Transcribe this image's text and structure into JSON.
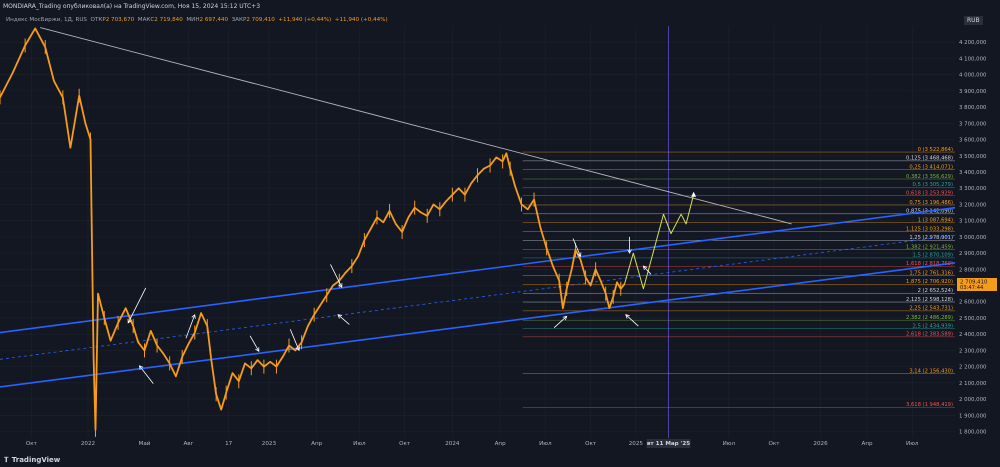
{
  "header": {
    "text": "MONDIARA_Trading опубликовал(а) на TradingView.com, Ноя 15, 2024 15:12 UTC+3"
  },
  "legend": {
    "symbol": "Индекс МосБиржи, 1Д, RUS",
    "open_label": "ОТКР",
    "open": "2 703,670",
    "high_label": "МАКС",
    "high": "2 719,840",
    "low_label": "МИН",
    "low": "2 697,440",
    "close_label": "ЗАКР",
    "close": "2 709,410",
    "change": "+11,940 (+0,44%)",
    "change2": "+11,940 (+0,44%)"
  },
  "currency": "RUB",
  "footer": {
    "logo": "TradingView",
    "logo_icon": "tv-logo-icon"
  },
  "price_tag": {
    "value": "2 709,410",
    "time": "03:47:44",
    "price": 2709.41
  },
  "date_marker": "вт 11 Мар '25",
  "colors": {
    "bg": "#131722",
    "grid": "#1e222d",
    "candle": "#f59c1a",
    "channel": "#2962ff",
    "trend": "#b2b5be",
    "arrow": "#ffffff",
    "projection": "#d4e157",
    "vline": "#7b61ff"
  },
  "chart_data": {
    "type": "line",
    "title": "Индекс МосБиржи, 1Д",
    "ylabel": "RUB",
    "ylim": [
      1760,
      4300
    ],
    "x_ticks": [
      "Окт",
      "2022",
      "Май",
      "Авг",
      "17",
      "2023",
      "Апр",
      "Июл",
      "Окт",
      "2024",
      "Апр",
      "Июл",
      "Окт",
      "2025",
      "вт 11 Мар '25",
      "Июл",
      "Окт",
      "2026",
      "Апр",
      "Июл"
    ],
    "x_tick_pos": [
      0.5,
      5,
      9.5,
      13,
      16.2,
      19.4,
      23.2,
      26.6,
      30.2,
      34,
      37.8,
      41.4,
      45,
      48.6,
      51.2,
      56,
      59.6,
      63.3,
      67,
      70.6
    ],
    "x_range": [
      -2,
      74
    ],
    "y_ticks": [
      1800,
      1900,
      2000,
      2100,
      2200,
      2300,
      2400,
      2500,
      2600,
      2700,
      2800,
      2900,
      3000,
      3100,
      3200,
      3300,
      3400,
      3500,
      3600,
      3700,
      3800,
      3900,
      4000,
      4100,
      4200
    ],
    "price_path": [
      [
        -2,
        3860
      ],
      [
        -1,
        4010
      ],
      [
        0,
        4180
      ],
      [
        0.8,
        4285
      ],
      [
        1.6,
        4170
      ],
      [
        2.3,
        3960
      ],
      [
        3,
        3860
      ],
      [
        3.6,
        3550
      ],
      [
        4.3,
        3870
      ],
      [
        4.8,
        3700
      ],
      [
        5.2,
        3600
      ],
      [
        5.45,
        2250
      ],
      [
        5.6,
        1810
      ],
      [
        5.8,
        2650
      ],
      [
        6.3,
        2500
      ],
      [
        6.8,
        2360
      ],
      [
        7.4,
        2470
      ],
      [
        8,
        2560
      ],
      [
        8.6,
        2450
      ],
      [
        9,
        2350
      ],
      [
        9.5,
        2300
      ],
      [
        10,
        2420
      ],
      [
        10.5,
        2330
      ],
      [
        11,
        2280
      ],
      [
        11.5,
        2220
      ],
      [
        12,
        2140
      ],
      [
        12.5,
        2260
      ],
      [
        13,
        2340
      ],
      [
        13.5,
        2410
      ],
      [
        14,
        2530
      ],
      [
        14.5,
        2450
      ],
      [
        14.8,
        2250
      ],
      [
        15.2,
        2030
      ],
      [
        15.6,
        1935
      ],
      [
        16,
        2040
      ],
      [
        16.5,
        2160
      ],
      [
        17,
        2110
      ],
      [
        17.5,
        2220
      ],
      [
        18,
        2190
      ],
      [
        18.5,
        2240
      ],
      [
        19,
        2200
      ],
      [
        19.5,
        2230
      ],
      [
        20,
        2200
      ],
      [
        20.5,
        2260
      ],
      [
        21,
        2330
      ],
      [
        21.5,
        2300
      ],
      [
        22,
        2350
      ],
      [
        22.5,
        2450
      ],
      [
        23,
        2520
      ],
      [
        23.5,
        2580
      ],
      [
        24,
        2640
      ],
      [
        24.5,
        2700
      ],
      [
        25,
        2730
      ],
      [
        25.5,
        2780
      ],
      [
        26,
        2820
      ],
      [
        26.5,
        2880
      ],
      [
        27,
        2980
      ],
      [
        27.5,
        3050
      ],
      [
        28,
        3120
      ],
      [
        28.5,
        3090
      ],
      [
        29,
        3160
      ],
      [
        29.5,
        3080
      ],
      [
        30,
        3030
      ],
      [
        30.5,
        3120
      ],
      [
        31,
        3180
      ],
      [
        31.5,
        3150
      ],
      [
        32,
        3130
      ],
      [
        32.5,
        3200
      ],
      [
        33,
        3170
      ],
      [
        33.5,
        3220
      ],
      [
        34,
        3260
      ],
      [
        34.5,
        3300
      ],
      [
        35,
        3260
      ],
      [
        35.5,
        3330
      ],
      [
        36,
        3380
      ],
      [
        36.5,
        3420
      ],
      [
        37,
        3440
      ],
      [
        37.5,
        3490
      ],
      [
        38,
        3465
      ],
      [
        38.3,
        3515
      ],
      [
        38.6,
        3420
      ],
      [
        39,
        3310
      ],
      [
        39.5,
        3200
      ],
      [
        40,
        3170
      ],
      [
        40.5,
        3230
      ],
      [
        41,
        3060
      ],
      [
        41.5,
        2930
      ],
      [
        42,
        2820
      ],
      [
        42.5,
        2730
      ],
      [
        42.8,
        2560
      ],
      [
        43.1,
        2680
      ],
      [
        43.5,
        2800
      ],
      [
        43.8,
        2920
      ],
      [
        44.2,
        2860
      ],
      [
        44.6,
        2750
      ],
      [
        45,
        2700
      ],
      [
        45.4,
        2800
      ],
      [
        45.8,
        2730
      ],
      [
        46.2,
        2650
      ],
      [
        46.5,
        2560
      ],
      [
        46.8,
        2630
      ],
      [
        47.1,
        2720
      ],
      [
        47.4,
        2680
      ],
      [
        47.7,
        2709
      ]
    ],
    "projection_path": [
      [
        47.7,
        2709
      ],
      [
        48.4,
        2900
      ],
      [
        49.2,
        2680
      ],
      [
        50.8,
        3140
      ],
      [
        51.4,
        3020
      ],
      [
        52.2,
        3140
      ],
      [
        52.6,
        3080
      ],
      [
        53.2,
        3260
      ]
    ],
    "trendline": {
      "from": [
        1.2,
        4290
      ],
      "to": [
        61,
        3080
      ]
    },
    "channel_upper": {
      "from": [
        -2,
        2410
      ],
      "to": [
        74,
        3180
      ]
    },
    "channel_lower": {
      "from": [
        -2,
        2075
      ],
      "to": [
        74,
        2840
      ]
    },
    "channel_mid": {
      "from": [
        -2,
        2245
      ],
      "to": [
        74,
        3010
      ]
    },
    "annotation_arrows": [
      {
        "from": [
          9.6,
          2685
        ],
        "to": [
          8.2,
          2470
        ]
      },
      {
        "from": [
          10.2,
          2095
        ],
        "to": [
          9.1,
          2205
        ]
      },
      {
        "from": [
          12.8,
          2375
        ],
        "to": [
          13.5,
          2520
        ]
      },
      {
        "from": [
          17.9,
          2390
        ],
        "to": [
          18.6,
          2295
        ]
      },
      {
        "from": [
          21.1,
          2430
        ],
        "to": [
          21.8,
          2300
        ]
      },
      {
        "from": [
          24.3,
          2830
        ],
        "to": [
          25.2,
          2690
        ]
      },
      {
        "from": [
          25.8,
          2460
        ],
        "to": [
          24.9,
          2520
        ]
      },
      {
        "from": [
          43.6,
          2990
        ],
        "to": [
          44.2,
          2880
        ]
      },
      {
        "from": [
          42.1,
          2440
        ],
        "to": [
          43.1,
          2510
        ]
      },
      {
        "from": [
          48.1,
          3000
        ],
        "to": [
          48.1,
          2900
        ]
      },
      {
        "from": [
          49.8,
          2770
        ],
        "to": [
          49.2,
          2820
        ]
      },
      {
        "from": [
          48.8,
          2450
        ],
        "to": [
          47.8,
          2520
        ]
      }
    ],
    "fibonacci": {
      "x_start": 39.6,
      "levels": [
        {
          "label": "0 (3 522,864)",
          "price": 3522.864,
          "color": "#f59c1a"
        },
        {
          "label": "0,125 (3 468,468)",
          "price": 3468.468,
          "color": "#d1d4dc"
        },
        {
          "label": "0,25 (3 414,071)",
          "price": 3414.071,
          "color": "#f59c1a"
        },
        {
          "label": "0,382 (3 356,629)",
          "price": 3356.629,
          "color": "#7cb342"
        },
        {
          "label": "0,5 (3 305,279)",
          "price": 3305.279,
          "color": "#26a69a"
        },
        {
          "label": "0,618 (3 253,929)",
          "price": 3253.929,
          "color": "#ef5350"
        },
        {
          "label": "0,75 (3 196,486)",
          "price": 3196.486,
          "color": "#f59c1a"
        },
        {
          "label": "0,875 (3 142,090)",
          "price": 3142.09,
          "color": "#d1d4dc"
        },
        {
          "label": "1 (3 087,694)",
          "price": 3087.694,
          "color": "#f59c1a"
        },
        {
          "label": "1,125 (3 033,298)",
          "price": 3033.298,
          "color": "#f59c1a"
        },
        {
          "label": "1,25 (2 978,901)",
          "price": 2978.901,
          "color": "#d1d4dc"
        },
        {
          "label": "1,382 (2 921,459)",
          "price": 2921.459,
          "color": "#7cb342"
        },
        {
          "label": "1,5 (2 870,109)",
          "price": 2870.109,
          "color": "#26a69a"
        },
        {
          "label": "1,618 (2 818,759)",
          "price": 2818.759,
          "color": "#ef5350"
        },
        {
          "label": "1,75 (2 761,316)",
          "price": 2761.316,
          "color": "#f59c1a"
        },
        {
          "label": "1,875 (2 706,920)",
          "price": 2706.92,
          "color": "#f59c1a"
        },
        {
          "label": "2 (2 652,524)",
          "price": 2652.524,
          "color": "#d1d4dc"
        },
        {
          "label": "2,125 (2 598,128)",
          "price": 2598.128,
          "color": "#d1d4dc"
        },
        {
          "label": "2,25 (2 543,731)",
          "price": 2543.731,
          "color": "#f59c1a"
        },
        {
          "label": "2,382 (2 486,289)",
          "price": 2486.289,
          "color": "#7cb342"
        },
        {
          "label": "2,5 (2 434,939)",
          "price": 2434.939,
          "color": "#26a69a"
        },
        {
          "label": "2,618 (2 383,589)",
          "price": 2383.589,
          "color": "#ef5350"
        },
        {
          "label": "3,14 (2 156,430)",
          "price": 2156.43,
          "color": "#f59c1a"
        },
        {
          "label": "3,618 (1 948,419)",
          "price": 1948.419,
          "color": "#ef5350"
        }
      ]
    },
    "vertical_marker_x": 51.2
  }
}
